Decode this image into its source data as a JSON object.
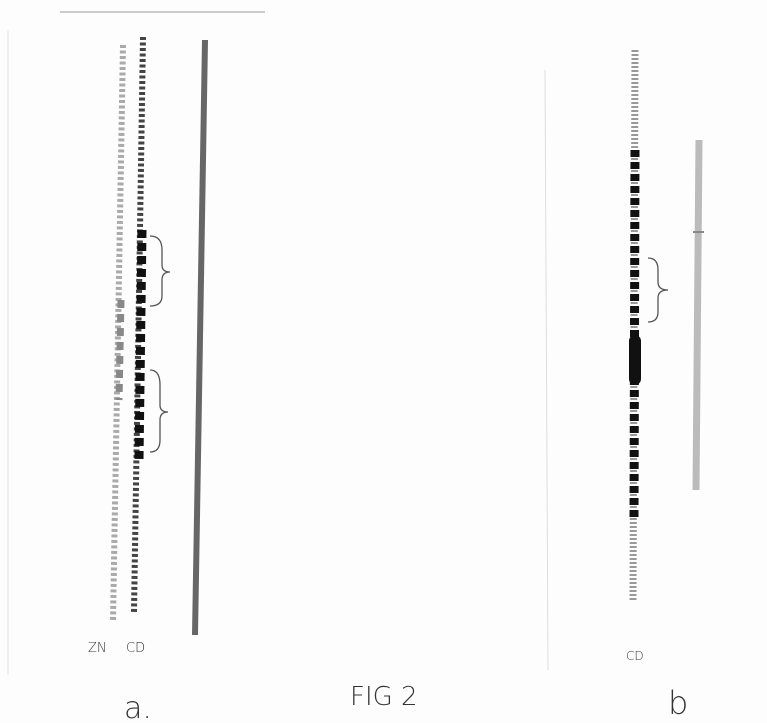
{
  "panel_a": {
    "zn_label": "ZN",
    "cd_label": "CD",
    "caption": "a."
  },
  "figure_title": "FIG 2",
  "panel_b": {
    "cd_label": "CD",
    "caption": "b"
  }
}
